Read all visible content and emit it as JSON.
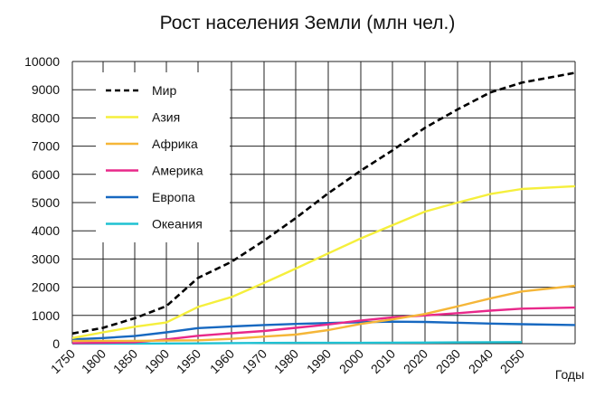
{
  "chart_data": {
    "type": "line",
    "title": "Рост населения Земли (млн чел.)",
    "xlabel": "Годы",
    "ylabel": "",
    "ylim": [
      0,
      10000
    ],
    "y_ticks": [
      "0",
      "1000",
      "2000",
      "3000",
      "4000",
      "5000",
      "6000",
      "7000",
      "8000",
      "9000",
      "10000"
    ],
    "x_ticks": [
      "1750",
      "1800",
      "1850",
      "1900",
      "1950",
      "1960",
      "1970",
      "1980",
      "1990",
      "2000",
      "2010",
      "2020",
      "2030",
      "2040",
      "2050"
    ],
    "grid": true,
    "legend_position": "top-left",
    "series": [
      {
        "name": "Мир",
        "color": "#000000",
        "dashed": true,
        "x": [
          1750,
          1800,
          1850,
          1900,
          1950,
          1960,
          1970,
          1980,
          1990,
          2000,
          2010,
          2020,
          2030,
          2040,
          2050,
          2060
        ],
        "values": [
          360,
          560,
          900,
          1330,
          2330,
          2900,
          3650,
          4450,
          5330,
          6130,
          6850,
          7650,
          8300,
          8900,
          9250,
          9600
        ]
      },
      {
        "name": "Азия",
        "color": "#f5ef3c",
        "dashed": false,
        "x": [
          1750,
          1800,
          1850,
          1900,
          1950,
          1960,
          1970,
          1980,
          1990,
          2000,
          2010,
          2020,
          2030,
          2040,
          2050,
          2060
        ],
        "values": [
          200,
          400,
          600,
          750,
          1300,
          1650,
          2150,
          2660,
          3200,
          3730,
          4200,
          4680,
          5000,
          5300,
          5480,
          5580
        ]
      },
      {
        "name": "Африка",
        "color": "#f5b638",
        "dashed": false,
        "x": [
          1750,
          1800,
          1850,
          1900,
          1950,
          1960,
          1970,
          1980,
          1990,
          2000,
          2010,
          2020,
          2030,
          2040,
          2050,
          2060
        ],
        "values": [
          100,
          100,
          100,
          110,
          120,
          170,
          250,
          320,
          480,
          700,
          860,
          1050,
          1320,
          1600,
          1850,
          2050
        ]
      },
      {
        "name": "Америка",
        "color": "#e8288a",
        "dashed": false,
        "x": [
          1750,
          1800,
          1850,
          1900,
          1950,
          1960,
          1970,
          1980,
          1990,
          2000,
          2010,
          2020,
          2030,
          2040,
          2050,
          2060
        ],
        "values": [
          20,
          30,
          50,
          150,
          280,
          370,
          450,
          560,
          680,
          820,
          930,
          1000,
          1080,
          1170,
          1240,
          1280
        ]
      },
      {
        "name": "Европа",
        "color": "#1768c0",
        "dashed": false,
        "x": [
          1750,
          1800,
          1850,
          1900,
          1950,
          1960,
          1970,
          1980,
          1990,
          2000,
          2010,
          2020,
          2030,
          2040,
          2050,
          2060
        ],
        "values": [
          150,
          200,
          270,
          400,
          550,
          610,
          660,
          700,
          730,
          760,
          780,
          770,
          740,
          710,
          690,
          660
        ]
      },
      {
        "name": "Океания",
        "color": "#1fc1d2",
        "dashed": false,
        "x": [
          1750,
          1800,
          1850,
          1900,
          1950,
          1960,
          1970,
          1980,
          1990,
          2000,
          2010,
          2020,
          2030,
          2040,
          2050
        ],
        "values": [
          2,
          2,
          2,
          5,
          10,
          20,
          25,
          30,
          30,
          30,
          35,
          40,
          45,
          50,
          55
        ]
      }
    ]
  }
}
